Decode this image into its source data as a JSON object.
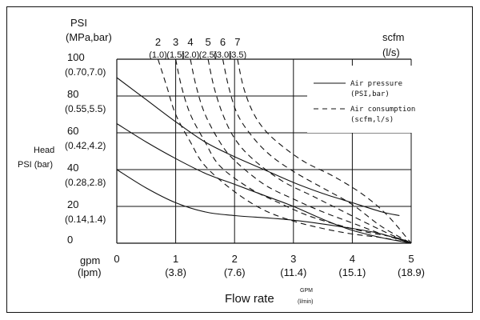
{
  "chart_data": {
    "type": "line",
    "title": "",
    "y_axis": {
      "title_line1": "PSI",
      "title_line2": "(MPa,bar)",
      "side_label_line1": "Head",
      "side_label_line2": "PSI (bar)",
      "ylim": [
        0,
        100
      ],
      "ticks": [
        {
          "v": 100,
          "main": "100",
          "sub": "(0.70,7.0)"
        },
        {
          "v": 80,
          "main": "80",
          "sub": "(0.55,5.5)"
        },
        {
          "v": 60,
          "main": "60",
          "sub": "(0.42,4.2)"
        },
        {
          "v": 40,
          "main": "40",
          "sub": "(0.28,2.8)"
        },
        {
          "v": 20,
          "main": "20",
          "sub": "(0.14,1.4)"
        },
        {
          "v": 0,
          "main": "0",
          "sub": ""
        }
      ]
    },
    "x_axis": {
      "left_label_line1": "gpm",
      "left_label_line2": "(lpm)",
      "xlabel": "Flow rate",
      "unit_line1": "GPM",
      "unit_line2": "(l/min)",
      "xlim": [
        0,
        5
      ],
      "ticks": [
        {
          "v": 0,
          "main": "0",
          "sub": ""
        },
        {
          "v": 1,
          "main": "1",
          "sub": "(3.8)"
        },
        {
          "v": 2,
          "main": "2",
          "sub": "(7.6)"
        },
        {
          "v": 3,
          "main": "3",
          "sub": "(11.4)"
        },
        {
          "v": 4,
          "main": "4",
          "sub": "(15.1)"
        },
        {
          "v": 5,
          "main": "5",
          "sub": "(18.9)"
        }
      ]
    },
    "top_axis": {
      "unit_line1": "scfm",
      "unit_line2": "(l/s)",
      "labels": [
        {
          "v": 0.7,
          "main": "2",
          "sub": "(1.0)"
        },
        {
          "v": 1.0,
          "main": "3",
          "sub": "(1.5)"
        },
        {
          "v": 1.25,
          "main": "4",
          "sub": "(2.0)"
        },
        {
          "v": 1.55,
          "main": "5",
          "sub": "(2.5)"
        },
        {
          "v": 1.8,
          "main": "6",
          "sub": "(3.0)"
        },
        {
          "v": 2.05,
          "main": "7",
          "sub": "(3.5)"
        }
      ]
    },
    "legend": {
      "placement": "top-right",
      "air_pressure_line1": "Air pressure",
      "air_pressure_line2": "(PSI,bar)",
      "air_consumption_line1": "Air consumption",
      "air_consumption_line2": "(scfm,l/s)"
    },
    "grid": true,
    "series": [
      {
        "kind": "air-pressure",
        "points": [
          [
            0,
            40
          ],
          [
            0.5,
            30
          ],
          [
            1,
            22
          ],
          [
            1.5,
            17
          ],
          [
            2,
            15
          ],
          [
            3,
            12.5
          ],
          [
            4,
            8
          ],
          [
            4.5,
            5
          ],
          [
            5,
            0
          ]
        ]
      },
      {
        "kind": "air-pressure",
        "points": [
          [
            0,
            65
          ],
          [
            0.5,
            55
          ],
          [
            1,
            46
          ],
          [
            1.5,
            38
          ],
          [
            2,
            32
          ],
          [
            2.5,
            26
          ],
          [
            3,
            20
          ],
          [
            3.5,
            13
          ],
          [
            4,
            7
          ],
          [
            4.5,
            3
          ],
          [
            5,
            0
          ]
        ]
      },
      {
        "kind": "air-pressure",
        "points": [
          [
            0,
            90
          ],
          [
            0.5,
            78
          ],
          [
            1,
            66
          ],
          [
            1.5,
            55
          ],
          [
            2,
            47
          ],
          [
            2.5,
            40
          ],
          [
            3,
            33
          ],
          [
            3.5,
            27
          ],
          [
            4,
            22
          ],
          [
            4.5,
            17
          ],
          [
            4.8,
            15
          ]
        ]
      },
      {
        "kind": "air-consumption",
        "points": [
          [
            0.7,
            100
          ],
          [
            0.85,
            85
          ],
          [
            1,
            70
          ],
          [
            1.25,
            55
          ],
          [
            1.5,
            42
          ],
          [
            2,
            28
          ],
          [
            2.5,
            18
          ],
          [
            3,
            12
          ],
          [
            3.5,
            8
          ],
          [
            4,
            5
          ],
          [
            4.5,
            3
          ],
          [
            5,
            0
          ]
        ]
      },
      {
        "kind": "air-consumption",
        "points": [
          [
            1,
            100
          ],
          [
            1.1,
            85
          ],
          [
            1.25,
            70
          ],
          [
            1.5,
            55
          ],
          [
            1.75,
            42
          ],
          [
            2.25,
            30
          ],
          [
            2.75,
            22
          ],
          [
            3.25,
            15
          ],
          [
            3.75,
            10
          ],
          [
            4.25,
            6
          ],
          [
            4.75,
            3
          ],
          [
            5,
            0
          ]
        ]
      },
      {
        "kind": "air-consumption",
        "points": [
          [
            1.25,
            100
          ],
          [
            1.35,
            85
          ],
          [
            1.5,
            70
          ],
          [
            1.75,
            55
          ],
          [
            2,
            45
          ],
          [
            2.5,
            32
          ],
          [
            3,
            24
          ],
          [
            3.5,
            17
          ],
          [
            4,
            11
          ],
          [
            4.5,
            5
          ],
          [
            5,
            0
          ]
        ]
      },
      {
        "kind": "air-consumption",
        "points": [
          [
            1.55,
            100
          ],
          [
            1.65,
            85
          ],
          [
            1.8,
            70
          ],
          [
            2,
            57
          ],
          [
            2.3,
            46
          ],
          [
            2.8,
            34
          ],
          [
            3.3,
            26
          ],
          [
            3.8,
            18
          ],
          [
            4.3,
            10
          ],
          [
            4.7,
            4
          ],
          [
            5,
            0
          ]
        ]
      },
      {
        "kind": "air-consumption",
        "points": [
          [
            1.8,
            100
          ],
          [
            1.9,
            85
          ],
          [
            2.05,
            70
          ],
          [
            2.3,
            58
          ],
          [
            2.6,
            48
          ],
          [
            3,
            39
          ],
          [
            3.5,
            30
          ],
          [
            4,
            21
          ],
          [
            4.5,
            9
          ],
          [
            5,
            0
          ]
        ]
      },
      {
        "kind": "air-consumption",
        "points": [
          [
            2.05,
            100
          ],
          [
            2.15,
            85
          ],
          [
            2.3,
            72
          ],
          [
            2.5,
            62
          ],
          [
            2.8,
            53
          ],
          [
            3.2,
            44
          ],
          [
            3.7,
            36
          ],
          [
            4.2,
            26
          ],
          [
            4.6,
            15
          ],
          [
            5,
            0
          ]
        ]
      }
    ]
  }
}
